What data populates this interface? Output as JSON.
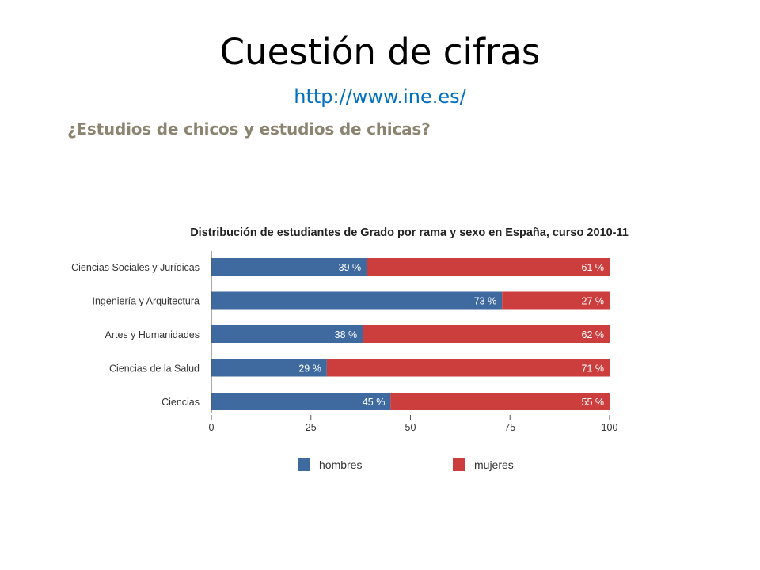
{
  "slide": {
    "title": "Cuestión de cifras",
    "link": "http://www.ine.es/",
    "subtitle": "¿Estudios de chicos y estudios de chicas?"
  },
  "colors": {
    "hombres": "#3e6aa0",
    "mujeres": "#cc3d3d",
    "link": "#0070c0",
    "subtitle": "#8b8470"
  },
  "chart_data": {
    "type": "bar",
    "orientation": "horizontal",
    "stacked": true,
    "title": "Distribución de estudiantes de Grado por rama y sexo en España, curso 2010-11",
    "categories": [
      "Ciencias Sociales y Jurídicas",
      "Ingeniería y Arquitectura",
      "Artes y Humanidades",
      "Ciencias de la Salud",
      "Ciencias"
    ],
    "series": [
      {
        "name": "hombres",
        "values": [
          39,
          73,
          38,
          29,
          45
        ],
        "labels": [
          "39 %",
          "73 %",
          "38 %",
          "29 %",
          "45 %"
        ]
      },
      {
        "name": "mujeres",
        "values": [
          61,
          27,
          62,
          71,
          55
        ],
        "labels": [
          "61 %",
          "27 %",
          "62 %",
          "71 %",
          "55 %"
        ]
      }
    ],
    "xlim": [
      0,
      100
    ],
    "xticks": [
      "0",
      "25",
      "50",
      "75",
      "100"
    ],
    "grid": false,
    "legend_position": "bottom"
  }
}
